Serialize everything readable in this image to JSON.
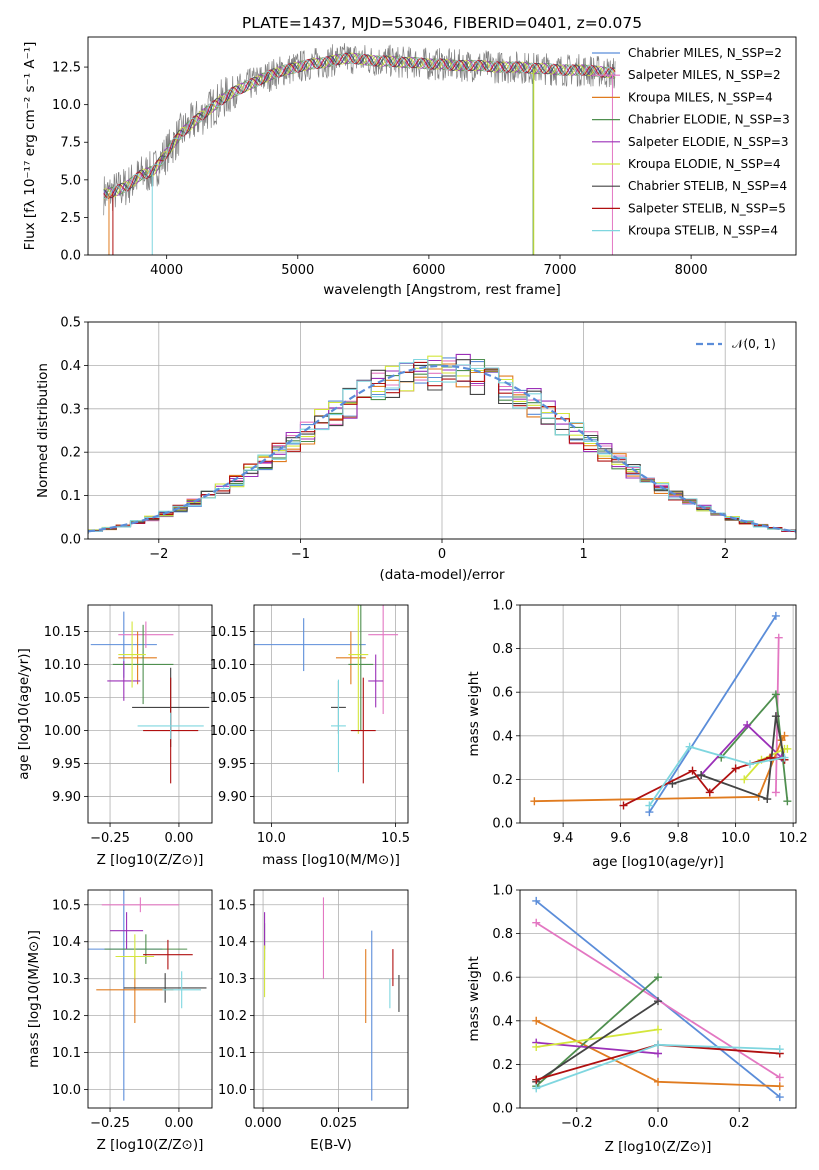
{
  "chart_data": [
    {
      "type": "line",
      "title": "PLATE=1437, MJD=53046, FIBERID=0401, z=0.075",
      "xlabel": "wavelength [Angstrom, rest frame]",
      "ylabel": "Flux [fλ 10⁻¹⁷ erg cm⁻² s⁻¹ A⁻¹]",
      "xlim": [
        3400,
        8800
      ],
      "ylim": [
        0,
        14.5
      ],
      "xticks": [
        "4000",
        "5000",
        "6000",
        "7000",
        "8000"
      ],
      "yticks": [
        "0.0",
        "2.5",
        "5.0",
        "7.5",
        "10.0",
        "12.5"
      ],
      "data_series": {
        "name": "",
        "color": "#808080"
      },
      "series": [
        {
          "name": "Chabrier MILES, N_SSP=2",
          "color": "#5b8dd9"
        },
        {
          "name": "Salpeter MILES, N_SSP=2",
          "color": "#e377c2"
        },
        {
          "name": "Kroupa MILES, N_SSP=4",
          "color": "#e07b1f"
        },
        {
          "name": "Chabrier ELODIE, N_SSP=3",
          "color": "#4f8f4f"
        },
        {
          "name": "Salpeter ELODIE, N_SSP=3",
          "color": "#9b30b8"
        },
        {
          "name": "Kroupa ELODIE, N_SSP=4",
          "color": "#d4e63c"
        },
        {
          "name": "Chabrier STELIB, N_SSP=4",
          "color": "#444444"
        },
        {
          "name": "Salpeter STELIB, N_SSP=5",
          "color": "#b01010"
        },
        {
          "name": "Kroupa STELIB, N_SSP=4",
          "color": "#7fd6df"
        }
      ],
      "legend_placement": "top-right",
      "grid": false,
      "model_points": {
        "x": [
          3500,
          3600,
          3700,
          3800,
          3900,
          4000,
          4100,
          4200,
          4300,
          4400,
          4500,
          4600,
          4700,
          4800,
          4900,
          5000,
          5100,
          5200,
          5300,
          5400,
          5500,
          5600,
          5700,
          5800,
          5900,
          6000,
          6100,
          6200,
          6300,
          6400,
          6500,
          6600,
          6700,
          6800,
          6900,
          7000,
          7100,
          7200,
          7300,
          7400
        ],
        "y": [
          4.0,
          4.2,
          4.6,
          5.3,
          5.6,
          6.8,
          8.0,
          8.8,
          9.5,
          10.2,
          10.8,
          11.2,
          11.6,
          12.0,
          12.3,
          12.5,
          12.7,
          12.8,
          13.0,
          13.1,
          13.0,
          12.9,
          12.9,
          12.8,
          12.8,
          12.7,
          12.7,
          12.6,
          12.6,
          12.6,
          12.5,
          12.5,
          12.5,
          12.4,
          12.4,
          12.3,
          12.3,
          12.3,
          12.2,
          12.1
        ]
      }
    },
    {
      "type": "histogram",
      "xlabel": "(data-model)/error",
      "ylabel": "Normed distribution",
      "xlim": [
        -2.5,
        2.5
      ],
      "ylim": [
        0,
        0.5
      ],
      "xticks": [
        "−2",
        "−1",
        "0",
        "1",
        "2"
      ],
      "yticks": [
        "0.0",
        "0.1",
        "0.2",
        "0.3",
        "0.4",
        "0.5"
      ],
      "legend": "𝒩(0, 1)",
      "legend_placement": "top-right",
      "reference_curve": "standard normal (mean 0, sigma 1)",
      "grid": true,
      "bin_width": 0.1
    },
    {
      "type": "scatter",
      "xlabel": "Z [log10(Z/Z⊙)]",
      "ylabel": "age  [log10(age/yr)]",
      "xlim": [
        -0.33,
        0.12
      ],
      "ylim": [
        9.86,
        10.19
      ],
      "xticks": [
        "−0.25",
        "0.00"
      ],
      "yticks": [
        "9.90",
        "9.95",
        "10.00",
        "10.05",
        "10.10",
        "10.15"
      ],
      "grid": true,
      "points": [
        {
          "series": 0,
          "x": -0.2,
          "y": 10.13,
          "xerr": 0.12,
          "yerr": 0.05
        },
        {
          "series": 1,
          "x": -0.12,
          "y": 10.145,
          "xerr": 0.1,
          "yerr": 0.02
        },
        {
          "series": 2,
          "x": -0.15,
          "y": 10.11,
          "xerr": 0.07,
          "yerr": 0.04
        },
        {
          "series": 3,
          "x": -0.13,
          "y": 10.1,
          "xerr": 0.11,
          "yerr": 0.06
        },
        {
          "series": 4,
          "x": -0.2,
          "y": 10.075,
          "xerr": 0.06,
          "yerr": 0.03
        },
        {
          "series": 5,
          "x": -0.17,
          "y": 10.115,
          "xerr": 0.05,
          "yerr": 0.05
        },
        {
          "series": 6,
          "x": -0.03,
          "y": 10.035,
          "xerr": 0.14,
          "yerr": 0.06
        },
        {
          "series": 7,
          "x": -0.03,
          "y": 10.0,
          "xerr": 0.1,
          "yerr": 0.08
        },
        {
          "series": 8,
          "x": -0.03,
          "y": 10.007,
          "xerr": 0.12,
          "yerr": 0.02
        }
      ]
    },
    {
      "type": "scatter",
      "xlabel": "mass [log10(M/M⊙)]",
      "ylabel": "",
      "xlim": [
        9.93,
        10.55
      ],
      "ylim": [
        9.86,
        10.19
      ],
      "xticks": [
        "10.0",
        "10.5"
      ],
      "yticks": [
        "9.90",
        "9.95",
        "10.00",
        "10.05",
        "10.10",
        "10.15"
      ],
      "grid": true,
      "points": [
        {
          "series": 0,
          "x": 10.13,
          "y": 10.13,
          "xerr": 0.25,
          "yerr": 0.04
        },
        {
          "series": 1,
          "x": 10.45,
          "y": 10.145,
          "xerr": 0.06,
          "yerr": 0.12
        },
        {
          "series": 2,
          "x": 10.32,
          "y": 10.11,
          "xerr": 0.06,
          "yerr": 0.04
        },
        {
          "series": 3,
          "x": 10.36,
          "y": 10.1,
          "xerr": 0.05,
          "yerr": 0.1
        },
        {
          "series": 4,
          "x": 10.42,
          "y": 10.075,
          "xerr": 0.03,
          "yerr": 0.04
        },
        {
          "series": 5,
          "x": 10.35,
          "y": 10.115,
          "xerr": 0.04,
          "yerr": 0.12
        },
        {
          "series": 6,
          "x": 10.27,
          "y": 10.035,
          "xerr": 0.03,
          "yerr": 0.04
        },
        {
          "series": 7,
          "x": 10.37,
          "y": 10.0,
          "xerr": 0.05,
          "yerr": 0.08
        },
        {
          "series": 8,
          "x": 10.27,
          "y": 10.007,
          "xerr": 0.03,
          "yerr": 0.07
        }
      ]
    },
    {
      "type": "line",
      "xlabel": "age  [log10(age/yr)]",
      "ylabel": "mass weight",
      "xlim": [
        9.25,
        10.21
      ],
      "ylim": [
        0,
        1.0
      ],
      "xticks": [
        "9.4",
        "9.6",
        "9.8",
        "10.0",
        "10.2"
      ],
      "yticks": [
        "0.0",
        "0.2",
        "0.4",
        "0.6",
        "0.8",
        "1.0"
      ],
      "grid": true,
      "series": [
        {
          "series": 0,
          "x": [
            9.7,
            10.14
          ],
          "y": [
            0.05,
            0.95
          ]
        },
        {
          "series": 1,
          "x": [
            10.14,
            10.15
          ],
          "y": [
            0.14,
            0.85
          ]
        },
        {
          "series": 2,
          "x": [
            9.3,
            10.08,
            10.16,
            10.17
          ],
          "y": [
            0.1,
            0.12,
            0.38,
            0.4
          ]
        },
        {
          "series": 3,
          "x": [
            9.95,
            10.14,
            10.18
          ],
          "y": [
            0.3,
            0.59,
            0.1
          ]
        },
        {
          "series": 4,
          "x": [
            9.88,
            10.04,
            10.16
          ],
          "y": [
            0.22,
            0.45,
            0.3
          ]
        },
        {
          "series": 5,
          "x": [
            10.03,
            10.09,
            10.17,
            10.18
          ],
          "y": [
            0.2,
            0.29,
            0.34,
            0.34
          ]
        },
        {
          "series": 6,
          "x": [
            9.78,
            9.88,
            10.11,
            10.14,
            10.17
          ],
          "y": [
            0.18,
            0.22,
            0.11,
            0.49,
            0.29
          ]
        },
        {
          "series": 7,
          "x": [
            9.61,
            9.85,
            9.91,
            10.0,
            10.12,
            10.17
          ],
          "y": [
            0.08,
            0.24,
            0.14,
            0.25,
            0.3,
            0.29
          ]
        },
        {
          "series": 8,
          "x": [
            9.7,
            9.84,
            10.05,
            10.17
          ],
          "y": [
            0.08,
            0.35,
            0.27,
            0.3
          ]
        }
      ]
    },
    {
      "type": "scatter",
      "xlabel": "Z [log10(Z/Z⊙)]",
      "ylabel": "mass [log10(M/M⊙)]",
      "xlim": [
        -0.33,
        0.12
      ],
      "ylim": [
        9.95,
        10.54
      ],
      "xticks": [
        "−0.25",
        "0.00"
      ],
      "yticks": [
        "10.0",
        "10.1",
        "10.2",
        "10.3",
        "10.4",
        "10.5"
      ],
      "grid": true,
      "points": [
        {
          "series": 0,
          "x": -0.2,
          "y": 10.38,
          "xerr": 0.14,
          "yerr": 0.41
        },
        {
          "series": 1,
          "x": -0.14,
          "y": 10.5,
          "xerr": 0.14,
          "yerr": 0.02
        },
        {
          "series": 2,
          "x": -0.16,
          "y": 10.27,
          "xerr": 0.14,
          "yerr": 0.09
        },
        {
          "series": 3,
          "x": -0.12,
          "y": 10.38,
          "xerr": 0.15,
          "yerr": 0.04
        },
        {
          "series": 4,
          "x": -0.19,
          "y": 10.43,
          "xerr": 0.06,
          "yerr": 0.05
        },
        {
          "series": 5,
          "x": -0.16,
          "y": 10.36,
          "xerr": 0.07,
          "yerr": 0.06
        },
        {
          "series": 6,
          "x": -0.05,
          "y": 10.275,
          "xerr": 0.15,
          "yerr": 0.04
        },
        {
          "series": 7,
          "x": -0.04,
          "y": 10.365,
          "xerr": 0.09,
          "yerr": 0.04
        },
        {
          "series": 8,
          "x": 0.01,
          "y": 10.27,
          "xerr": 0.07,
          "yerr": 0.05
        }
      ]
    },
    {
      "type": "errorbar",
      "xlabel": "E(B-V)",
      "ylabel": "",
      "xlim": [
        -0.003,
        0.048
      ],
      "ylim": [
        9.95,
        10.54
      ],
      "xticks": [
        "0.000",
        "0.025"
      ],
      "yticks": [
        "10.0",
        "10.1",
        "10.2",
        "10.3",
        "10.4",
        "10.5"
      ],
      "grid": true,
      "points": [
        {
          "series": 0,
          "x": 0.036,
          "y": 10.2,
          "yerr": 0.23
        },
        {
          "series": 1,
          "x": 0.02,
          "y": 10.41,
          "yerr": 0.11
        },
        {
          "series": 2,
          "x": 0.034,
          "y": 10.28,
          "yerr": 0.1
        },
        {
          "series": 3,
          "x": 0.0005,
          "y": 10.4,
          "yerr": 0.05
        },
        {
          "series": 4,
          "x": 0.0005,
          "y": 10.43,
          "yerr": 0.05
        },
        {
          "series": 5,
          "x": 0.0005,
          "y": 10.32,
          "yerr": 0.07
        },
        {
          "series": 6,
          "x": 0.045,
          "y": 10.26,
          "yerr": 0.05
        },
        {
          "series": 7,
          "x": 0.043,
          "y": 10.33,
          "yerr": 0.05
        },
        {
          "series": 8,
          "x": 0.042,
          "y": 10.26,
          "yerr": 0.04
        }
      ]
    },
    {
      "type": "line",
      "xlabel": "Z [log10(Z/Z⊙)]",
      "ylabel": "mass weight",
      "xlim": [
        -0.34,
        0.34
      ],
      "ylim": [
        0,
        1.0
      ],
      "xticks": [
        "−0.2",
        "0.0",
        "0.2"
      ],
      "yticks": [
        "0.0",
        "0.2",
        "0.4",
        "0.6",
        "0.8",
        "1.0"
      ],
      "grid": true,
      "series": [
        {
          "series": 0,
          "x": [
            -0.3,
            0.3
          ],
          "y": [
            0.95,
            0.05
          ]
        },
        {
          "series": 1,
          "x": [
            -0.3,
            0.3
          ],
          "y": [
            0.85,
            0.14
          ]
        },
        {
          "series": 2,
          "x": [
            -0.3,
            0.0,
            0.3
          ],
          "y": [
            0.4,
            0.12,
            0.1
          ]
        },
        {
          "series": 3,
          "x": [
            -0.3,
            0.0
          ],
          "y": [
            0.1,
            0.6
          ]
        },
        {
          "series": 4,
          "x": [
            -0.3,
            0.0
          ],
          "y": [
            0.3,
            0.25
          ]
        },
        {
          "series": 5,
          "x": [
            -0.3,
            0.0
          ],
          "y": [
            0.28,
            0.36
          ]
        },
        {
          "series": 6,
          "x": [
            -0.3,
            0.0
          ],
          "y": [
            0.12,
            0.49
          ]
        },
        {
          "series": 7,
          "x": [
            -0.3,
            0.0,
            0.3
          ],
          "y": [
            0.13,
            0.29,
            0.25
          ]
        },
        {
          "series": 8,
          "x": [
            -0.3,
            0.0,
            0.3
          ],
          "y": [
            0.09,
            0.29,
            0.27
          ]
        }
      ]
    }
  ]
}
